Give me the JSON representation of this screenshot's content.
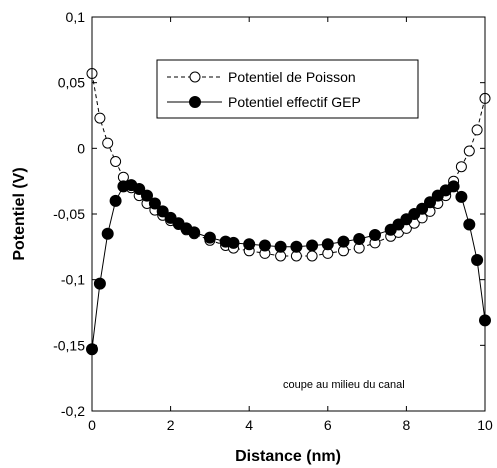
{
  "chart_data": {
    "type": "scatter",
    "title": "",
    "xlabel": "Distance (nm)",
    "ylabel": "Potentiel (V)",
    "xlim": [
      0,
      10
    ],
    "ylim": [
      -0.2,
      0.1
    ],
    "xticks": [
      0,
      2,
      4,
      6,
      8,
      10
    ],
    "xtick_labels": [
      "0",
      "2",
      "4",
      "6",
      "8",
      "10"
    ],
    "yticks": [
      -0.2,
      -0.15,
      -0.1,
      -0.05,
      0,
      0.05,
      0.1
    ],
    "ytick_labels": [
      "-0,2",
      "-0,15",
      "-0,1",
      "-0,05",
      "0",
      "0,05",
      "0,1"
    ],
    "grid": false,
    "legend_position": "top-center",
    "annotation": "coupe au milieu du canal",
    "series": [
      {
        "name": "Potentiel de Poisson",
        "marker": "open-circle",
        "line": "dashed",
        "x": [
          0,
          0.2,
          0.4,
          0.6,
          0.8,
          1.0,
          1.2,
          1.4,
          1.6,
          1.8,
          2.0,
          2.2,
          2.4,
          2.6,
          3.0,
          3.4,
          3.6,
          4.0,
          4.4,
          4.8,
          5.2,
          5.6,
          6.0,
          6.4,
          6.8,
          7.2,
          7.6,
          7.8,
          8.0,
          8.2,
          8.4,
          8.6,
          8.8,
          9.0,
          9.2,
          9.4,
          9.6,
          9.8,
          10.0
        ],
        "y": [
          0.057,
          0.023,
          0.004,
          -0.01,
          -0.022,
          -0.03,
          -0.036,
          -0.042,
          -0.047,
          -0.051,
          -0.055,
          -0.058,
          -0.062,
          -0.065,
          -0.07,
          -0.074,
          -0.076,
          -0.078,
          -0.08,
          -0.082,
          -0.082,
          -0.082,
          -0.08,
          -0.078,
          -0.076,
          -0.072,
          -0.067,
          -0.064,
          -0.061,
          -0.057,
          -0.053,
          -0.048,
          -0.042,
          -0.036,
          -0.025,
          -0.014,
          -0.002,
          0.014,
          0.038
        ]
      },
      {
        "name": "Potentiel effectif GEP",
        "marker": "filled-circle",
        "line": "solid",
        "x": [
          0,
          0.2,
          0.4,
          0.6,
          0.8,
          1.0,
          1.2,
          1.4,
          1.6,
          1.8,
          2.0,
          2.2,
          2.4,
          2.6,
          3.0,
          3.4,
          3.6,
          4.0,
          4.4,
          4.8,
          5.2,
          5.6,
          6.0,
          6.4,
          6.8,
          7.2,
          7.6,
          7.8,
          8.0,
          8.2,
          8.4,
          8.6,
          8.8,
          9.0,
          9.2,
          9.4,
          9.6,
          9.8,
          10.0
        ],
        "y": [
          -0.153,
          -0.103,
          -0.065,
          -0.04,
          -0.029,
          -0.028,
          -0.031,
          -0.036,
          -0.042,
          -0.048,
          -0.053,
          -0.057,
          -0.061,
          -0.064,
          -0.068,
          -0.071,
          -0.072,
          -0.073,
          -0.074,
          -0.075,
          -0.075,
          -0.074,
          -0.073,
          -0.071,
          -0.069,
          -0.066,
          -0.062,
          -0.058,
          -0.054,
          -0.05,
          -0.046,
          -0.041,
          -0.036,
          -0.032,
          -0.029,
          -0.037,
          -0.058,
          -0.085,
          -0.131
        ]
      }
    ]
  }
}
